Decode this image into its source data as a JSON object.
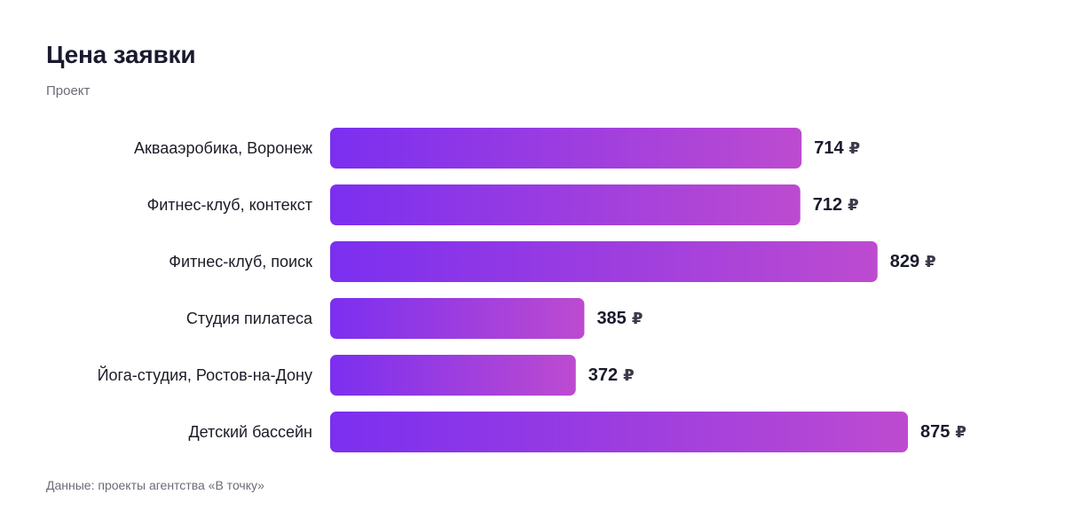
{
  "header": {
    "title": "Цена заявки",
    "subtitle": "Проект"
  },
  "footer": {
    "source": "Данные: проекты агентства «В точку»"
  },
  "chart_data": {
    "type": "bar",
    "orientation": "horizontal",
    "title": "Цена заявки",
    "subtitle": "Проект",
    "categories": [
      "Аквааэробика, Воронеж",
      "Фитнес-клуб, контекст",
      "Фитнес-клуб, поиск",
      "Студия пилатеса",
      "Йога-студия, Ростов-на-Дону",
      "Детский бассейн"
    ],
    "values": [
      714,
      712,
      829,
      385,
      372,
      875
    ],
    "value_suffix": "₽",
    "grid": false,
    "legend": "none",
    "colors": {
      "bar_start": "#7b2ff0",
      "bar_end": "#bd4bd0"
    }
  }
}
